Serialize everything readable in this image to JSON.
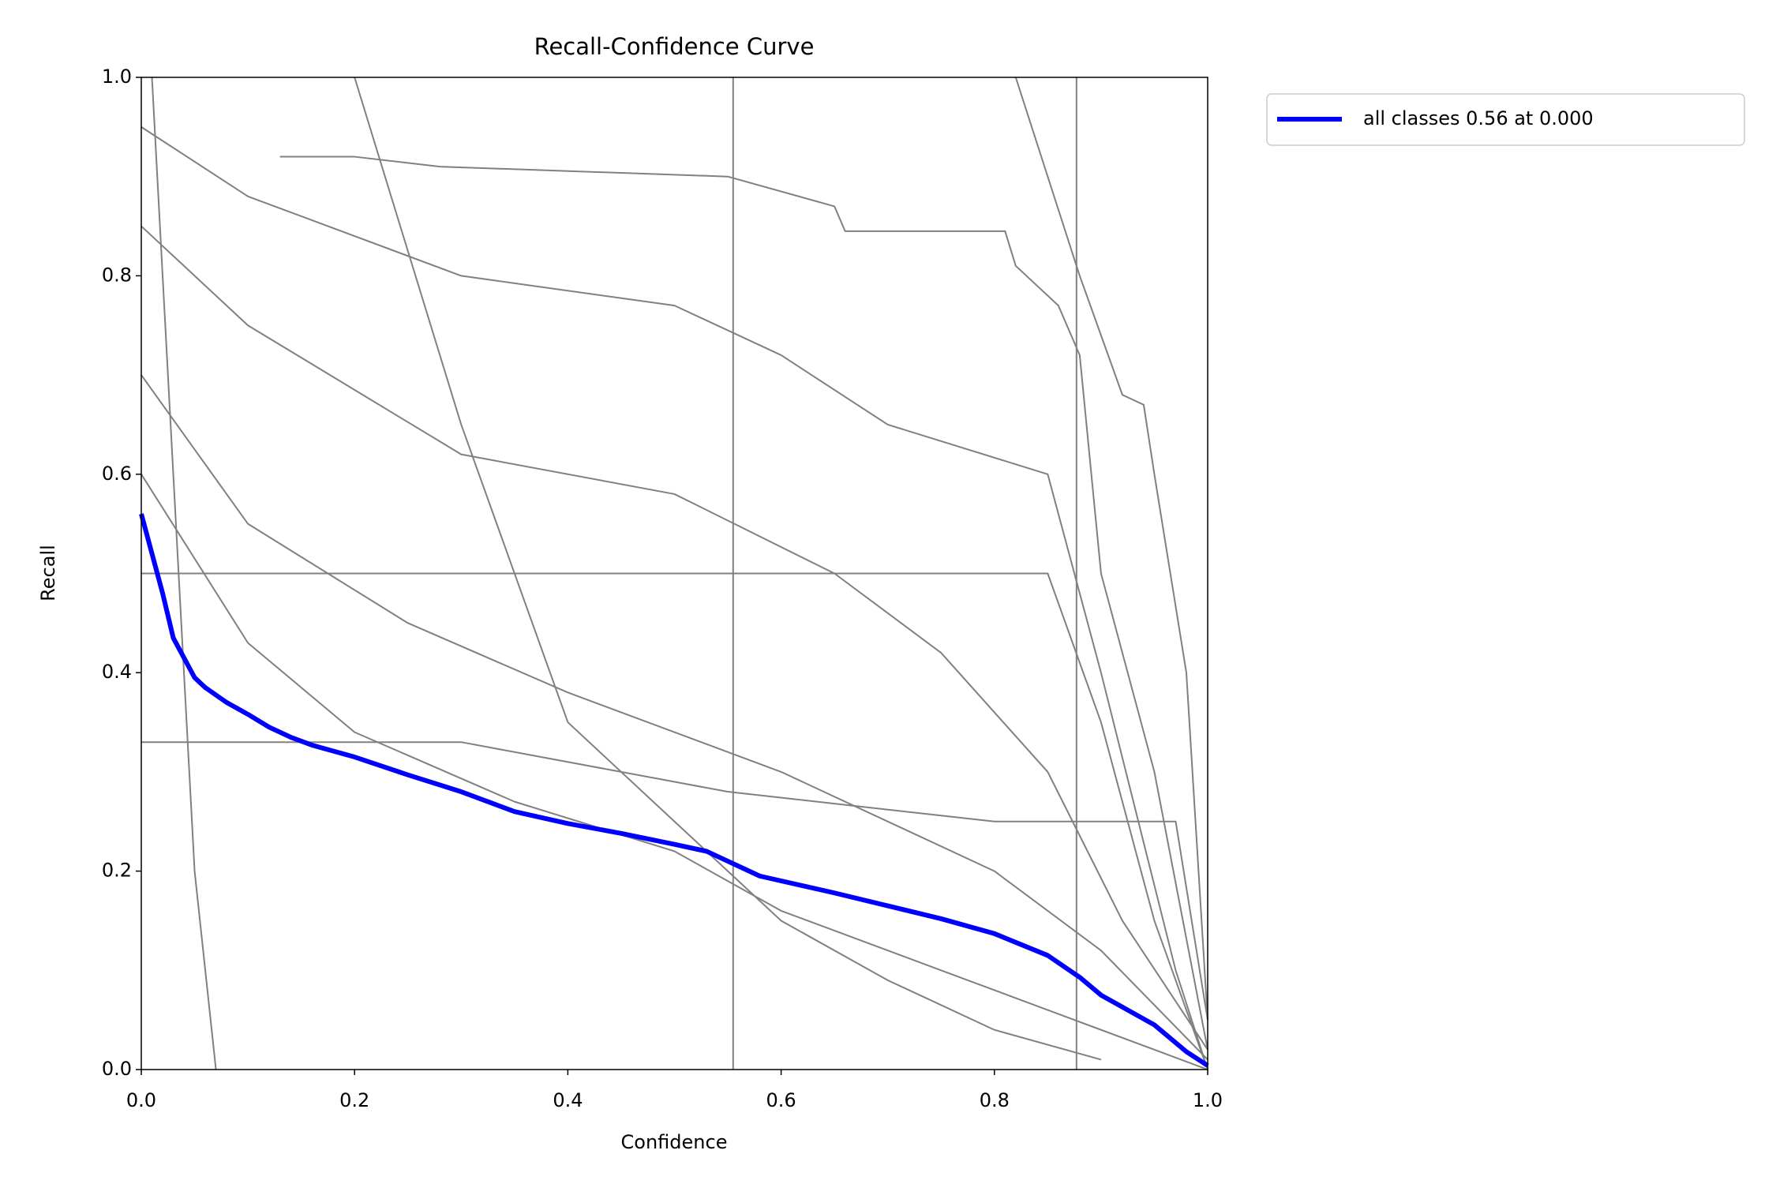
{
  "chart_data": {
    "type": "line",
    "title": "Recall-Confidence Curve",
    "x_label": "Confidence",
    "y_label": "Recall",
    "xlim": [
      0,
      1
    ],
    "ylim": [
      0,
      1
    ],
    "xticks": [
      {
        "value": 0,
        "label": "0.0"
      },
      0.2,
      0.4,
      0.6,
      0.8,
      {
        "value": 1,
        "label": "1.0"
      }
    ],
    "yticks": [
      {
        "value": 0,
        "label": "0.0"
      },
      0.2,
      0.4,
      0.6,
      0.8,
      {
        "value": 1,
        "label": "1.0"
      }
    ],
    "legend": "upper right outside",
    "series": [
      {
        "color": "#808080",
        "x": [
          0.13,
          0.2,
          0.28,
          0.55,
          0.65,
          0.66,
          0.81,
          0.82,
          0.86,
          0.88,
          0.9,
          0.95,
          1.0
        ],
        "values": [
          0.92,
          0.92,
          0.91,
          0.9,
          0.87,
          0.845,
          0.845,
          0.81,
          0.77,
          0.72,
          0.5,
          0.3,
          0.02
        ]
      },
      {
        "color": "#808080",
        "x": [
          0,
          0.1,
          0.3,
          0.5,
          0.6,
          0.7,
          0.85,
          0.9,
          0.97,
          1.0
        ],
        "values": [
          0.95,
          0.88,
          0.8,
          0.77,
          0.72,
          0.65,
          0.6,
          0.4,
          0.1,
          0
        ]
      },
      {
        "color": "#808080",
        "x": [
          0,
          0.1,
          0.3,
          0.5,
          0.65,
          0.75,
          0.85,
          0.92,
          1.0
        ],
        "values": [
          0.85,
          0.75,
          0.62,
          0.58,
          0.5,
          0.42,
          0.3,
          0.15,
          0.02
        ]
      },
      {
        "color": "#808080",
        "x": [
          0,
          0.1,
          0.25,
          0.4,
          0.6,
          0.8,
          0.9,
          1.0
        ],
        "values": [
          0.7,
          0.55,
          0.45,
          0.38,
          0.3,
          0.2,
          0.12,
          0.01
        ]
      },
      {
        "color": "#808080",
        "x": [
          0,
          0.1,
          0.2,
          0.35,
          0.5,
          0.6,
          0.75,
          0.85,
          0.95,
          1.0
        ],
        "values": [
          0.6,
          0.43,
          0.34,
          0.27,
          0.22,
          0.16,
          0.1,
          0.06,
          0.02,
          0
        ]
      },
      {
        "color": "#808080",
        "x": [
          0.2,
          0.3,
          0.4,
          0.5,
          0.6,
          0.7,
          0.8,
          0.9
        ],
        "values": [
          1.0,
          0.65,
          0.35,
          0.25,
          0.15,
          0.09,
          0.04,
          0.01
        ]
      },
      {
        "color": "#808080",
        "x": [
          0.82,
          0.88,
          0.92,
          0.94,
          0.95,
          0.98,
          1.0
        ],
        "values": [
          1.0,
          0.8,
          0.68,
          0.67,
          0.6,
          0.4,
          0.05
        ]
      },
      {
        "color": "#808080",
        "x": [
          0.01,
          0.03,
          0.05,
          0.07
        ],
        "values": [
          1.0,
          0.6,
          0.2,
          0
        ]
      },
      {
        "color": "#808080",
        "x": [
          0,
          0.85,
          0.9,
          0.95,
          1.0
        ],
        "values": [
          0.5,
          0.5,
          0.35,
          0.15,
          0
        ]
      },
      {
        "color": "#808080",
        "x": [
          0,
          0.3,
          0.55,
          0.8,
          0.97,
          1.0
        ],
        "values": [
          0.33,
          0.33,
          0.28,
          0.25,
          0.25,
          0.05
        ]
      },
      {
        "color": "#808080",
        "x": [
          0.555,
          0.555
        ],
        "values": [
          1.0,
          0
        ]
      },
      {
        "color": "#808080",
        "x": [
          0.877,
          0.877
        ],
        "values": [
          1.0,
          0
        ]
      },
      {
        "name": "all classes 0.56 at 0.000",
        "color": "#0000ff",
        "x": [
          0,
          0.01,
          0.02,
          0.03,
          0.04,
          0.05,
          0.06,
          0.08,
          0.1,
          0.12,
          0.14,
          0.16,
          0.2,
          0.25,
          0.3,
          0.35,
          0.4,
          0.45,
          0.5,
          0.53,
          0.58,
          0.65,
          0.7,
          0.75,
          0.8,
          0.85,
          0.88,
          0.9,
          0.95,
          0.98,
          1.0
        ],
        "values": [
          0.56,
          0.52,
          0.48,
          0.435,
          0.415,
          0.395,
          0.385,
          0.37,
          0.358,
          0.345,
          0.335,
          0.327,
          0.315,
          0.297,
          0.28,
          0.26,
          0.248,
          0.238,
          0.227,
          0.22,
          0.195,
          0.178,
          0.165,
          0.152,
          0.137,
          0.115,
          0.093,
          0.075,
          0.045,
          0.018,
          0.004
        ]
      }
    ]
  }
}
